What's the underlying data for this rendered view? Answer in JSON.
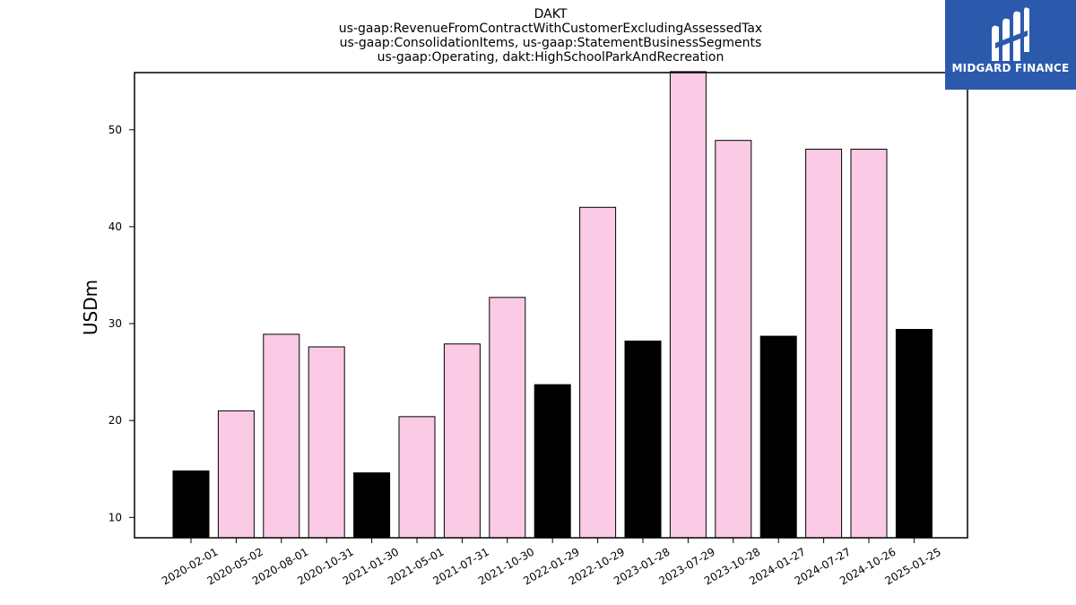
{
  "chart_data": {
    "type": "bar",
    "title": [
      "DAKT",
      "us-gaap:RevenueFromContractWithCustomerExcludingAssessedTax",
      "us-gaap:ConsolidationItems, us-gaap:StatementBusinessSegments",
      "us-gaap:Operating, dakt:HighSchoolParkAndRecreation"
    ],
    "xlabel": "",
    "ylabel": "USDm",
    "categories": [
      "2020-02-01",
      "2020-05-02",
      "2020-08-01",
      "2020-10-31",
      "2021-01-30",
      "2021-05-01",
      "2021-07-31",
      "2021-10-30",
      "2022-01-29",
      "2022-10-29",
      "2023-01-28",
      "2023-07-29",
      "2023-10-28",
      "2024-01-27",
      "2024-07-27",
      "2024-10-26",
      "2025-01-25"
    ],
    "values": [
      14.8,
      21.0,
      28.9,
      27.6,
      14.6,
      20.4,
      27.9,
      32.7,
      23.7,
      42.0,
      28.2,
      56.0,
      48.9,
      28.7,
      48.0,
      48.0,
      29.4
    ],
    "bar_colors": [
      "#000000",
      "#fbcae4",
      "#fbcae4",
      "#fbcae4",
      "#000000",
      "#fbcae4",
      "#fbcae4",
      "#fbcae4",
      "#000000",
      "#fbcae4",
      "#000000",
      "#fbcae4",
      "#fbcae4",
      "#000000",
      "#fbcae4",
      "#fbcae4",
      "#000000"
    ],
    "yticks": [
      10,
      20,
      30,
      40,
      50
    ],
    "ylim": [
      7.9,
      55.9
    ],
    "grid": false
  },
  "logo": {
    "text": "MIDGARD FINANCE",
    "background": "#2b5aad"
  }
}
